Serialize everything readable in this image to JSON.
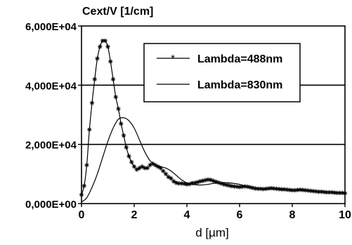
{
  "chart_data": {
    "type": "line",
    "title": "",
    "ylabel": "Cext/V [1/cm]",
    "xlabel": "d [µm]",
    "xlim": [
      0,
      10
    ],
    "ylim": [
      0,
      60000
    ],
    "xticks": [
      0,
      2,
      4,
      6,
      8,
      10
    ],
    "xtick_labels": [
      "0",
      "2",
      "4",
      "6",
      "8",
      "10"
    ],
    "yticks": [
      0,
      20000,
      40000,
      60000
    ],
    "ytick_labels": [
      "0,000E+00",
      "2,000E+04",
      "4,000E+04",
      "6,000E+04"
    ],
    "grid": "horizontal",
    "legend_position": "top-right",
    "series": [
      {
        "name": "Lambda=488nm",
        "marker": "asterisk",
        "color": "#000000",
        "x": [
          0.0,
          0.1,
          0.2,
          0.3,
          0.4,
          0.5,
          0.6,
          0.7,
          0.8,
          0.9,
          1.0,
          1.1,
          1.2,
          1.3,
          1.4,
          1.5,
          1.6,
          1.7,
          1.8,
          1.9,
          2.0,
          2.1,
          2.2,
          2.3,
          2.4,
          2.5,
          2.6,
          2.7,
          2.8,
          2.9,
          3.0,
          3.1,
          3.2,
          3.3,
          3.4,
          3.5,
          3.6,
          3.7,
          3.8,
          3.9,
          4.0,
          4.1,
          4.2,
          4.3,
          4.4,
          4.5,
          4.6,
          4.7,
          4.8,
          4.9,
          5.0,
          5.1,
          5.2,
          5.3,
          5.4,
          5.5,
          5.6,
          5.7,
          5.8,
          5.9,
          6.0,
          6.1,
          6.2,
          6.3,
          6.4,
          6.5,
          6.6,
          6.7,
          6.8,
          6.9,
          7.0,
          7.1,
          7.2,
          7.3,
          7.4,
          7.5,
          7.6,
          7.7,
          7.8,
          7.9,
          8.0,
          8.1,
          8.2,
          8.3,
          8.4,
          8.5,
          8.6,
          8.7,
          8.8,
          8.9,
          9.0,
          9.1,
          9.2,
          9.3,
          9.4,
          9.5,
          9.6,
          9.7,
          9.8,
          9.9,
          10.0
        ],
        "y": [
          3000,
          6000,
          13000,
          25000,
          34000,
          42000,
          49000,
          53000,
          55000,
          55000,
          53000,
          48000,
          42000,
          36000,
          32000,
          27000,
          23000,
          19000,
          16000,
          14000,
          12500,
          11500,
          12000,
          12500,
          12000,
          12000,
          13000,
          13500,
          13000,
          12500,
          12000,
          11000,
          10000,
          9000,
          8500,
          7500,
          7000,
          6800,
          6800,
          6700,
          6500,
          6600,
          6900,
          7000,
          7200,
          7500,
          7700,
          7900,
          8100,
          8000,
          7700,
          7400,
          7100,
          6800,
          6500,
          6300,
          6100,
          5900,
          5800,
          5700,
          5600,
          5700,
          5800,
          5700,
          5500,
          5300,
          5100,
          5000,
          5000,
          4900,
          5000,
          5100,
          5200,
          5100,
          5000,
          4900,
          4800,
          4800,
          4700,
          4600,
          4500,
          4500,
          4600,
          4700,
          4600,
          4500,
          4400,
          4300,
          4200,
          4100,
          4000,
          4000,
          3900,
          3800,
          3800,
          3800,
          3700,
          3600,
          3600,
          3600,
          3500
        ]
      },
      {
        "name": "Lambda=830nm",
        "marker": "none",
        "color": "#000000",
        "x": [
          0.0,
          0.2,
          0.4,
          0.6,
          0.8,
          1.0,
          1.2,
          1.4,
          1.6,
          1.8,
          2.0,
          2.2,
          2.4,
          2.6,
          2.8,
          3.0,
          3.2,
          3.4,
          3.6,
          3.8,
          4.0,
          4.2,
          4.4,
          4.6,
          4.8,
          5.0,
          5.2,
          5.4,
          5.6,
          5.8,
          6.0,
          6.2,
          6.4,
          6.6,
          6.8,
          7.0,
          7.2,
          7.4,
          7.6,
          7.8,
          8.0,
          8.2,
          8.4,
          8.6,
          8.8,
          9.0,
          9.2,
          9.4,
          9.6,
          9.8,
          10.0
        ],
        "y": [
          500,
          2000,
          5500,
          10000,
          15500,
          21000,
          25500,
          28500,
          29000,
          28000,
          25500,
          21500,
          17500,
          14500,
          13000,
          12500,
          12000,
          11000,
          9500,
          8000,
          7000,
          6500,
          6300,
          6300,
          6500,
          6800,
          7000,
          7100,
          7000,
          6800,
          6500,
          6000,
          5600,
          5300,
          5000,
          4900,
          5000,
          5100,
          5000,
          4800,
          4600,
          4500,
          4400,
          4300,
          4200,
          4100,
          4000,
          3900,
          3800,
          3700,
          3600
        ]
      }
    ]
  }
}
